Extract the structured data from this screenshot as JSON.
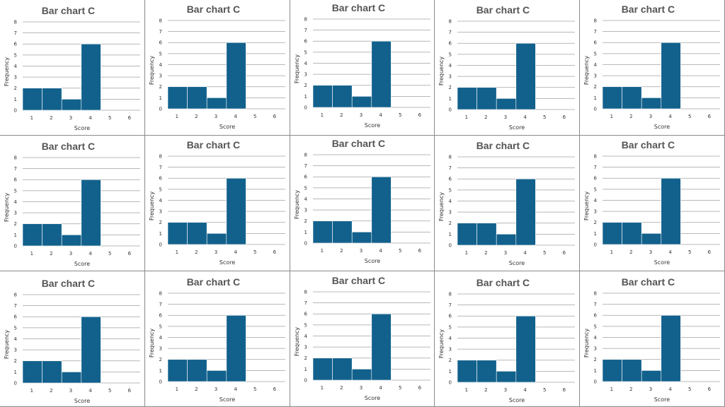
{
  "chart_data": {
    "type": "bar",
    "title": "Bar chart C",
    "xlabel": "Score",
    "ylabel": "Frequency",
    "x_ticks": [
      "1",
      "2",
      "3",
      "4",
      "5",
      "6"
    ],
    "y_ticks": [
      "0",
      "1",
      "2",
      "3",
      "4",
      "5",
      "6",
      "7",
      "8"
    ],
    "categories": [
      "1",
      "2",
      "3",
      "4",
      "5",
      "6"
    ],
    "values": [
      2,
      2,
      1,
      6,
      0,
      0
    ],
    "ylim": [
      0,
      8
    ],
    "grid": true,
    "bar_color": "#12618c",
    "repeat_rows": 3,
    "repeat_cols": 5
  }
}
